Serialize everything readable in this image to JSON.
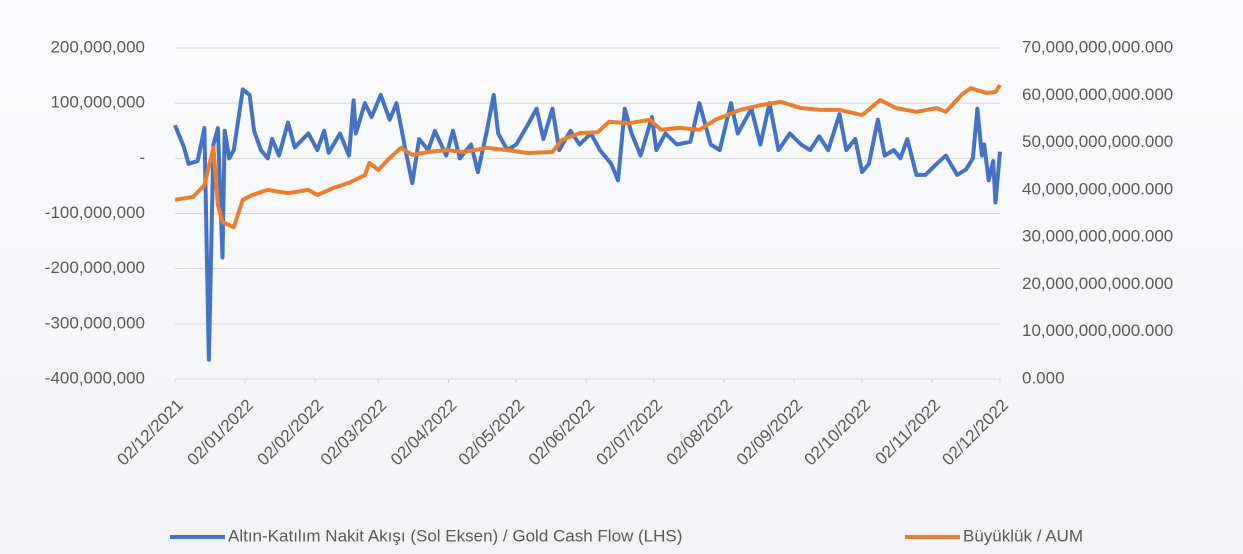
{
  "chart_data": {
    "type": "line",
    "xlim": [
      "02/12/2021",
      "02/12/2022"
    ],
    "xticks": [
      "02/12/2021",
      "02/01/2022",
      "02/02/2022",
      "02/03/2022",
      "02/04/2022",
      "02/05/2022",
      "02/06/2022",
      "02/07/2022",
      "02/08/2022",
      "02/09/2022",
      "02/10/2022",
      "02/11/2022",
      "02/12/2022"
    ],
    "ylim": [
      -400000000,
      200000000
    ],
    "yticks": [
      {
        "value": -400000000,
        "label": "-400,000,000"
      },
      {
        "value": -300000000,
        "label": "-300,000,000"
      },
      {
        "value": -200000000,
        "label": "-200,000,000"
      },
      {
        "value": -100000000,
        "label": "-100,000,000"
      },
      {
        "value": 0,
        "label": "-"
      },
      {
        "value": 100000000,
        "label": "100,000,000"
      },
      {
        "value": 200000000,
        "label": "200,000,000"
      }
    ],
    "y2lim": [
      0,
      70000000000
    ],
    "y2ticks": [
      {
        "value": 0,
        "label": "0.000"
      },
      {
        "value": 10000000000,
        "label": "10,000,000,000.000"
      },
      {
        "value": 20000000000,
        "label": "20,000,000,000.000"
      },
      {
        "value": 30000000000,
        "label": "30,000,000,000.000"
      },
      {
        "value": 40000000000,
        "label": "40,000,000,000.000"
      },
      {
        "value": 50000000000,
        "label": "50,000,000,000.000"
      },
      {
        "value": 60000000000,
        "label": "60,000,000,000.000"
      },
      {
        "value": 70000000000,
        "label": "70,000,000,000.000"
      }
    ],
    "grid": true,
    "legend": "bottom",
    "series": [
      {
        "name": "Altın-Katılım Nakit Akışı (Sol Eksen) / Gold Cash Flow (LHS)",
        "color": "#4472c4",
        "axis": "y",
        "x": [
          "02/12/2021",
          "06/12/2021",
          "08/12/2021",
          "12/12/2021",
          "15/12/2021",
          "17/12/2021",
          "19/12/2021",
          "21/12/2021",
          "23/12/2021",
          "24/12/2021",
          "26/12/2021",
          "28/12/2021",
          "01/01/2022",
          "04/01/2022",
          "06/01/2022",
          "09/01/2022",
          "12/01/2022",
          "14/01/2022",
          "17/01/2022",
          "21/01/2022",
          "24/01/2022",
          "30/01/2022",
          "03/02/2022",
          "06/02/2022",
          "08/02/2022",
          "13/02/2022",
          "17/02/2022",
          "19/02/2022",
          "20/02/2022",
          "24/02/2022",
          "27/02/2022",
          "03/03/2022",
          "07/03/2022",
          "10/03/2022",
          "14/03/2022",
          "17/03/2022",
          "20/03/2022",
          "24/03/2022",
          "27/03/2022",
          "01/04/2022",
          "04/04/2022",
          "07/04/2022",
          "12/04/2022",
          "15/04/2022",
          "19/04/2022",
          "22/04/2022",
          "24/04/2022",
          "28/04/2022",
          "02/05/2022",
          "07/05/2022",
          "11/05/2022",
          "14/05/2022",
          "18/05/2022",
          "21/05/2022",
          "26/05/2022",
          "30/05/2022",
          "04/06/2022",
          "08/06/2022",
          "13/06/2022",
          "16/06/2022",
          "19/06/2022",
          "22/06/2022",
          "26/06/2022",
          "01/07/2022",
          "03/07/2022",
          "07/07/2022",
          "12/07/2022",
          "18/07/2022",
          "22/07/2022",
          "27/07/2022",
          "31/07/2022",
          "05/08/2022",
          "08/08/2022",
          "14/08/2022",
          "18/08/2022",
          "22/08/2022",
          "26/08/2022",
          "31/08/2022",
          "05/09/2022",
          "09/09/2022",
          "13/09/2022",
          "17/09/2022",
          "22/09/2022",
          "25/09/2022",
          "29/09/2022",
          "02/10/2022",
          "05/10/2022",
          "09/10/2022",
          "12/10/2022",
          "16/10/2022",
          "19/10/2022",
          "22/10/2022",
          "26/10/2022",
          "30/10/2022",
          "04/11/2022",
          "08/11/2022",
          "13/11/2022",
          "17/11/2022",
          "20/11/2022",
          "22/11/2022",
          "24/11/2022",
          "25/11/2022",
          "27/11/2022",
          "29/11/2022",
          "30/11/2022",
          "02/12/2022"
        ],
        "values": [
          60000000,
          20000000,
          -10000000,
          -5000000,
          55000000,
          -365000000,
          25000000,
          55000000,
          -180000000,
          50000000,
          0,
          15000000,
          125000000,
          115000000,
          50000000,
          15000000,
          0,
          35000000,
          5000000,
          65000000,
          20000000,
          45000000,
          15000000,
          50000000,
          10000000,
          45000000,
          5000000,
          105000000,
          45000000,
          100000000,
          75000000,
          115000000,
          70000000,
          100000000,
          15000000,
          -45000000,
          35000000,
          15000000,
          50000000,
          5000000,
          50000000,
          0,
          25000000,
          -25000000,
          50000000,
          115000000,
          45000000,
          15000000,
          25000000,
          60000000,
          90000000,
          35000000,
          90000000,
          15000000,
          50000000,
          25000000,
          45000000,
          15000000,
          -10000000,
          -40000000,
          90000000,
          45000000,
          5000000,
          75000000,
          15000000,
          45000000,
          25000000,
          30000000,
          100000000,
          25000000,
          15000000,
          100000000,
          45000000,
          90000000,
          25000000,
          100000000,
          15000000,
          45000000,
          25000000,
          15000000,
          40000000,
          15000000,
          80000000,
          15000000,
          35000000,
          -25000000,
          -10000000,
          70000000,
          5000000,
          15000000,
          0,
          35000000,
          -30000000,
          -30000000,
          -10000000,
          5000000,
          -30000000,
          -20000000,
          0,
          90000000,
          5000000,
          25000000,
          -40000000,
          -5000000,
          -80000000,
          12000000
        ]
      },
      {
        "name": "Büyüklük / AUM",
        "color": "#ed7d31",
        "axis": "y2",
        "x": [
          "02/12/2021",
          "10/12/2021",
          "15/12/2021",
          "19/12/2021",
          "21/12/2021",
          "23/12/2021",
          "28/12/2021",
          "01/01/2022",
          "05/01/2022",
          "12/01/2022",
          "21/01/2022",
          "30/01/2022",
          "03/02/2022",
          "10/02/2022",
          "17/02/2022",
          "24/02/2022",
          "26/02/2022",
          "02/03/2022",
          "06/03/2022",
          "12/03/2022",
          "17/03/2022",
          "24/03/2022",
          "01/04/2022",
          "09/04/2022",
          "19/04/2022",
          "28/04/2022",
          "07/05/2022",
          "18/05/2022",
          "22/05/2022",
          "30/05/2022",
          "07/06/2022",
          "12/06/2022",
          "21/06/2022",
          "30/06/2022",
          "05/07/2022",
          "13/07/2022",
          "22/07/2022",
          "29/07/2022",
          "09/08/2022",
          "18/08/2022",
          "27/08/2022",
          "05/09/2022",
          "14/09/2022",
          "22/09/2022",
          "02/10/2022",
          "10/10/2022",
          "17/10/2022",
          "26/10/2022",
          "04/11/2022",
          "08/11/2022",
          "15/11/2022",
          "19/11/2022",
          "26/11/2022",
          "30/11/2022",
          "02/12/2022"
        ],
        "values": [
          37900000000,
          38500000000,
          41000000000,
          48900000000,
          36800000000,
          33200000000,
          32100000000,
          37900000000,
          38900000000,
          40000000000,
          39300000000,
          40000000000,
          38900000000,
          40400000000,
          41500000000,
          43100000000,
          45700000000,
          44200000000,
          46300000000,
          48900000000,
          47400000000,
          48000000000,
          48400000000,
          48000000000,
          48900000000,
          48400000000,
          47800000000,
          48000000000,
          50500000000,
          52000000000,
          52200000000,
          54400000000,
          54100000000,
          54800000000,
          52700000000,
          53100000000,
          52700000000,
          54800000000,
          56900000000,
          57900000000,
          58600000000,
          57300000000,
          56900000000,
          56900000000,
          55800000000,
          59000000000,
          57300000000,
          56500000000,
          57300000000,
          56500000000,
          60100000000,
          61500000000,
          60500000000,
          60700000000,
          62200000000
        ]
      }
    ]
  }
}
